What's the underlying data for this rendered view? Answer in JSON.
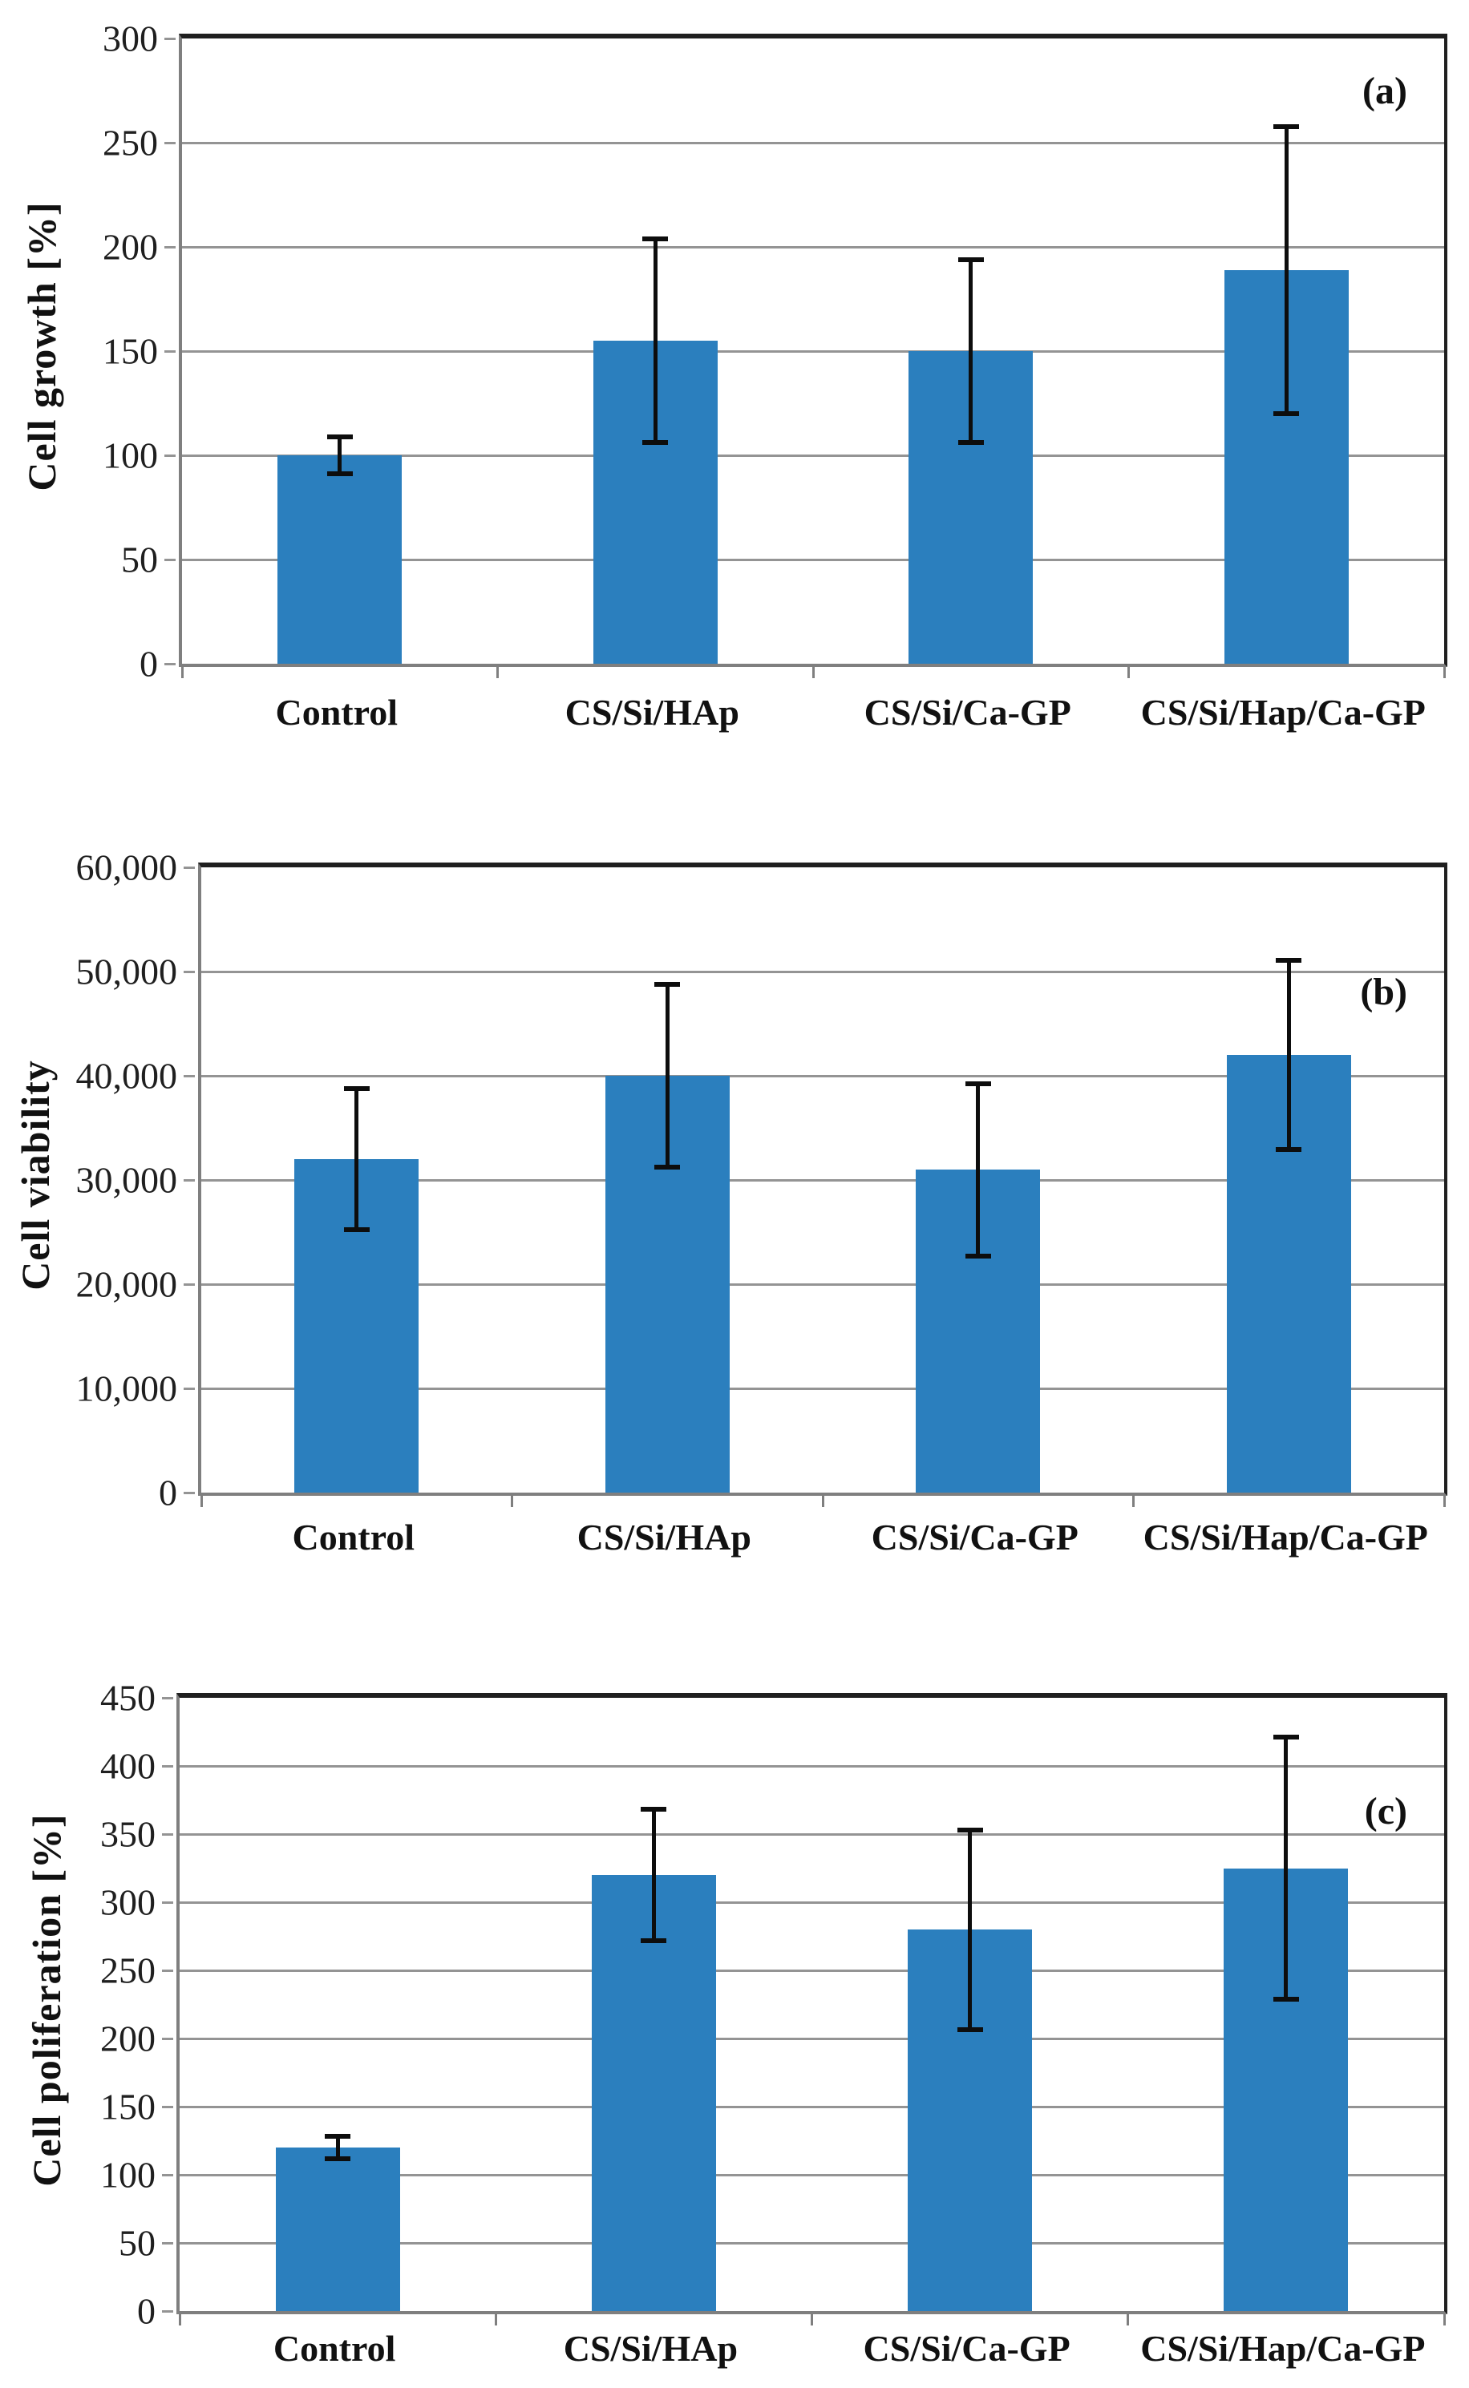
{
  "figure": {
    "background": "#ffffff",
    "styles": {
      "bar_color": "#2b7fbe",
      "grid_color": "#949494",
      "axis_color": "#7f7f7f",
      "frame_color": "#1f1f1f",
      "error_color": "#0d0d0d",
      "text_color": "#1a1a1a"
    }
  },
  "chart_data": [
    {
      "type": "bar",
      "panel_label": "(a)",
      "ylabel": "Cell growth [%]",
      "xlabel": "",
      "categories": [
        "Control",
        "CS/Si/HAp",
        "CS/Si/Ca-GP",
        "CS/Si/Hap/Ca-GP"
      ],
      "values": [
        100,
        155,
        150,
        189
      ],
      "error_bars": [
        10,
        50,
        45,
        70
      ],
      "ylim": [
        0,
        300
      ],
      "ystep": 50,
      "ytick_labels": [
        "0",
        "50",
        "100",
        "150",
        "200",
        "250",
        "300"
      ],
      "grid": true,
      "legend": "none"
    },
    {
      "type": "bar",
      "panel_label": "(b)",
      "ylabel": "Cell viability",
      "xlabel": "",
      "categories": [
        "Control",
        "CS/Si/HAp",
        "CS/Si/Ca-GP",
        "CS/Si/Hap/Ca-GP"
      ],
      "values": [
        32000,
        40000,
        31000,
        42000
      ],
      "error_bars": [
        7000,
        9000,
        8500,
        9300
      ],
      "ylim": [
        0,
        60000
      ],
      "ystep": 10000,
      "ytick_labels": [
        "0",
        "10,000",
        "20,000",
        "30,000",
        "40,000",
        "50,000",
        "60,000"
      ],
      "grid": true,
      "legend": "none"
    },
    {
      "type": "bar",
      "panel_label": "(c)",
      "ylabel": "Cell poliferation [%]",
      "xlabel": "",
      "categories": [
        "Control",
        "CS/Si/HAp",
        "CS/Si/Ca-GP",
        "CS/Si/Hap/Ca-GP"
      ],
      "values": [
        120,
        320,
        280,
        325
      ],
      "error_bars": [
        10,
        50,
        75,
        98
      ],
      "ylim": [
        0,
        450
      ],
      "ystep": 50,
      "ytick_labels": [
        "0",
        "50",
        "100",
        "150",
        "200",
        "250",
        "300",
        "350",
        "400",
        "450"
      ],
      "grid": true,
      "legend": "none"
    }
  ]
}
